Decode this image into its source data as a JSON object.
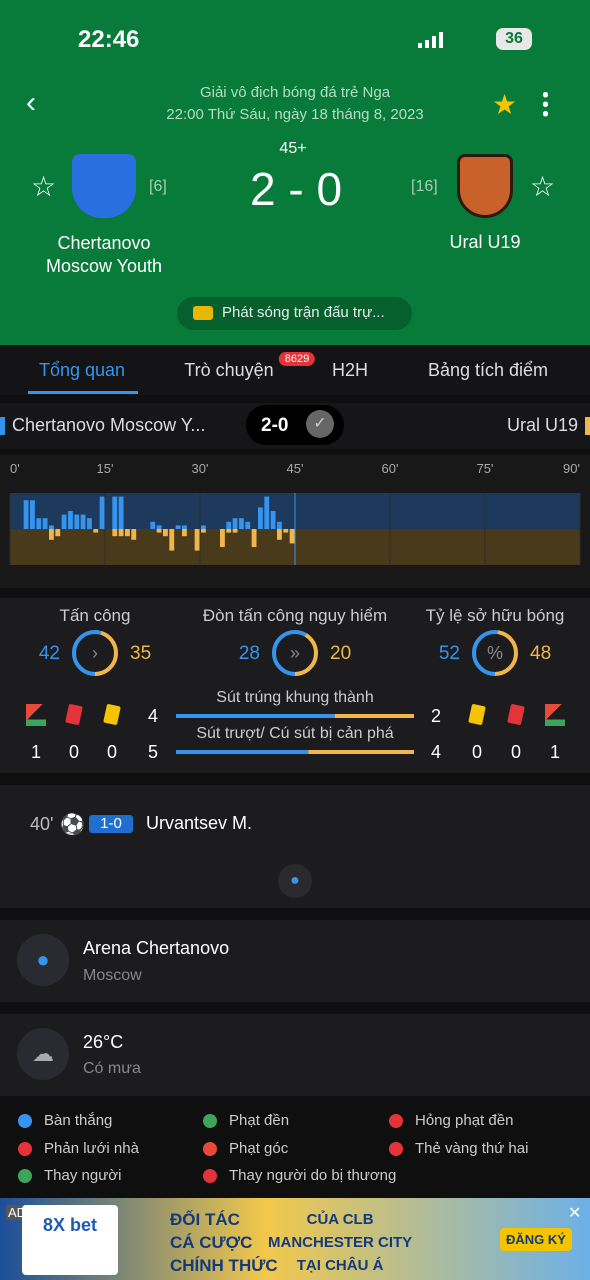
{
  "status_bar": {
    "time": "22:46",
    "battery": "36"
  },
  "header": {
    "competition": "Giải vô địch bóng đá trẻ Nga",
    "datetime": "22:00 Thứ Sáu, ngày 18 tháng 8, 2023",
    "period": "45+",
    "score": "2 - 0",
    "home": {
      "name": "Chertanovo Moscow Youth",
      "rank": "[6]"
    },
    "away": {
      "name": "Ural U19",
      "rank": "[16]"
    },
    "broadcast": "Phát sóng trận đấu trự..."
  },
  "tabs": [
    {
      "label": "Tổng quan"
    },
    {
      "label": "Trò chuyện",
      "badge": "8629"
    },
    {
      "label": "H2H"
    },
    {
      "label": "Bảng tích điểm"
    }
  ],
  "summary": {
    "home": "Chertanovo Moscow Y...",
    "score": "2-0",
    "away": "Ural U19"
  },
  "momentum": {
    "xlim": [
      0,
      90
    ],
    "ylim": [
      0,
      10
    ],
    "xticks": [
      {
        "value": 0,
        "label": "0'"
      },
      {
        "value": 15,
        "label": "15'"
      },
      {
        "value": 30,
        "label": "30'"
      },
      {
        "value": 45,
        "label": "45'"
      },
      {
        "value": 60,
        "label": "60'"
      },
      {
        "value": 75,
        "label": "75'"
      },
      {
        "value": 90,
        "label": "90'"
      }
    ],
    "home": [
      0,
      0,
      8,
      8,
      3,
      3,
      1,
      0,
      4,
      5,
      4,
      4,
      3,
      0,
      9,
      0,
      9,
      9,
      0,
      0,
      0,
      0,
      2,
      1,
      0,
      0,
      1,
      1,
      0,
      0,
      1,
      0,
      0,
      0,
      2,
      3,
      3,
      2,
      0,
      6,
      9,
      5,
      2,
      0,
      0
    ],
    "away": [
      0,
      0,
      0,
      0,
      0,
      0,
      3,
      2,
      0,
      0,
      0,
      0,
      0,
      1,
      0,
      0,
      2,
      2,
      2,
      3,
      0,
      0,
      0,
      1,
      2,
      6,
      0,
      2,
      0,
      6,
      1,
      0,
      0,
      5,
      1,
      1,
      0,
      0,
      5,
      0,
      0,
      0,
      3,
      1,
      4
    ]
  },
  "stats": [
    {
      "label": "Tấn công",
      "home": 42,
      "away": 35
    },
    {
      "label": "Đòn tấn công nguy hiểm",
      "home": 28,
      "away": 20
    },
    {
      "label": "Tỷ lệ sở hữu bóng",
      "home": 52,
      "away": 48
    }
  ],
  "shots": [
    {
      "label": "Sút trúng khung thành",
      "home": 4,
      "away": 2
    },
    {
      "label": "Sút trượt/ Cú sút bị cản phá",
      "home": 5,
      "away": 4
    }
  ],
  "cards": {
    "home": {
      "corners": 1,
      "red": 0,
      "yellow": 0
    },
    "away": {
      "yellow": 0,
      "red": 0,
      "corners": 1
    }
  },
  "events": [
    {
      "minute": "40'",
      "score": "1-0",
      "player": "Urvantsev M."
    }
  ],
  "venue": {
    "name": "Arena Chertanovo",
    "city": "Moscow"
  },
  "weather": {
    "temp": "26°C",
    "desc": "Có mưa"
  },
  "legend": [
    "Bàn thắng",
    "Phạt đền",
    "Hỏng phạt đền",
    "Phản lưới nhà",
    "Phạt góc",
    "Thẻ vàng thứ hai",
    "Thay người",
    "Thay người do bị thương"
  ],
  "ad": {
    "label": "AD",
    "brand": "8X bet",
    "line1": "ĐỐI TÁC",
    "line2": "CÁ CƯỢC",
    "line3": "CHÍNH THỨC",
    "line4": "CỦA CLB",
    "line5": "MANCHESTER CITY",
    "line6": "TẠI CHÂU Á",
    "button": "ĐĂNG KÝ"
  }
}
